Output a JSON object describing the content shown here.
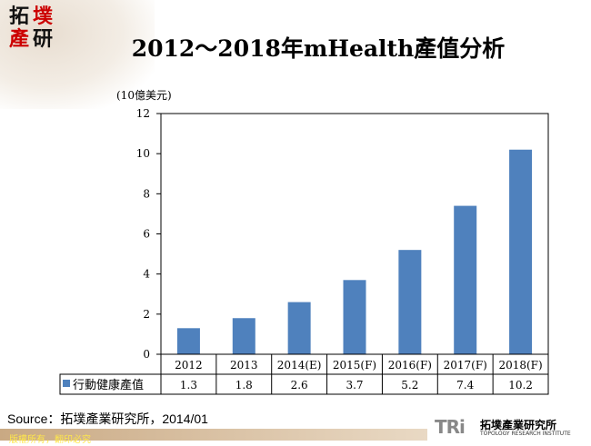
{
  "logo": {
    "chars": [
      "拓",
      "墣",
      "產",
      "研"
    ]
  },
  "title": "2012～2018年mHealth產值分析",
  "unit_label": "(10億美元)",
  "source": "Source：拓墣產業研究所，2014/01",
  "footer": "版權所有，翻印必究",
  "brand": {
    "mark": "TRi",
    "name_cn": "拓墣產業研究所",
    "name_en": "TOPOLOGY RESEARCH INSTITUTE"
  },
  "chart_data": {
    "type": "bar",
    "title": "2012～2018年mHealth產值分析",
    "ylabel": "(10億美元)",
    "categories": [
      "2012",
      "2013",
      "2014(E)",
      "2015(F)",
      "2016(F)",
      "2017(F)",
      "2018(F)"
    ],
    "series": [
      {
        "name": "行動健康產值",
        "values": [
          1.3,
          1.8,
          2.6,
          3.7,
          5.2,
          7.4,
          10.2
        ],
        "labels": [
          "1.3",
          "1.8",
          "2.6",
          "3.7",
          "5.2",
          "7.4",
          "10.2"
        ],
        "color": "#4f81bd"
      }
    ],
    "ylim": [
      0,
      12
    ],
    "yticks": [
      0,
      2,
      4,
      6,
      8,
      10,
      12
    ],
    "grid": false,
    "legend": "data-table"
  }
}
